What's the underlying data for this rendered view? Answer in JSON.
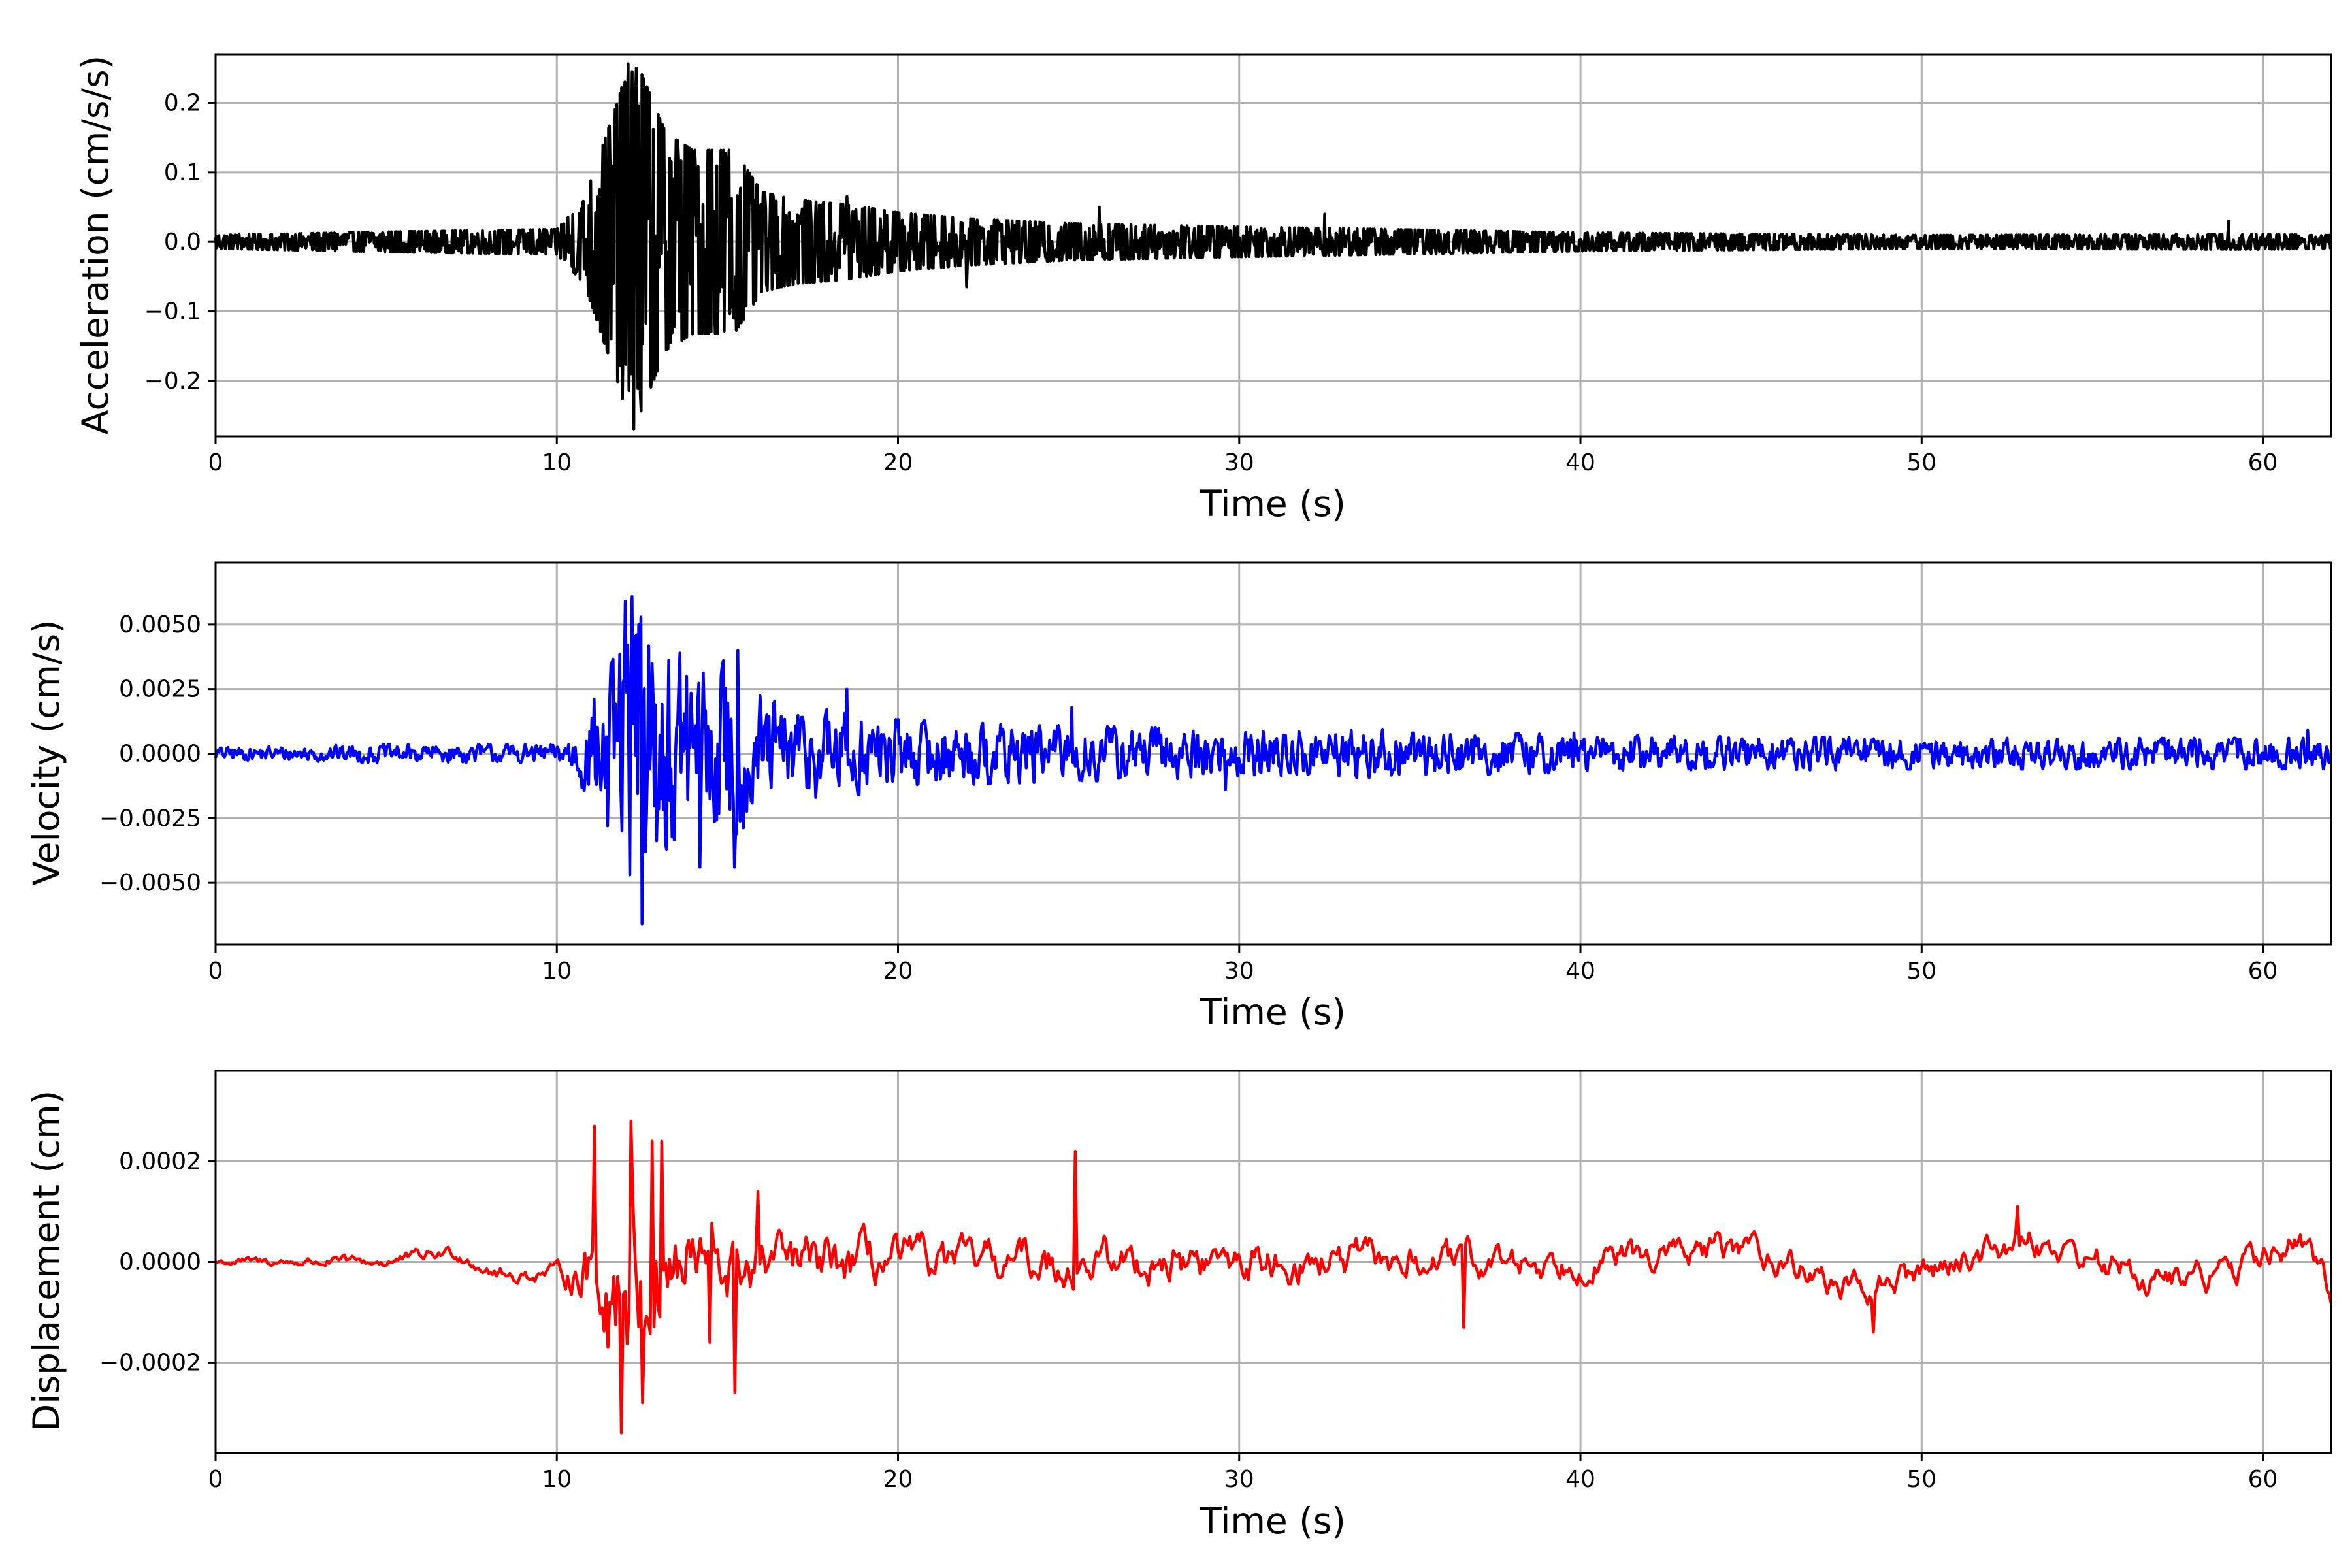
{
  "chart_data": [
    {
      "type": "line",
      "xlabel": "Time (s)",
      "ylabel": "Acceleration (cm/s/s)",
      "xlim": [
        0,
        62
      ],
      "ylim": [
        -0.28,
        0.27
      ],
      "xticks": [
        0,
        10,
        20,
        30,
        40,
        50,
        60
      ],
      "xtick_labels": [
        "0",
        "10",
        "20",
        "30",
        "40",
        "50",
        "60"
      ],
      "yticks": [
        -0.2,
        -0.1,
        0.0,
        0.1,
        0.2
      ],
      "ytick_labels": [
        "−0.2",
        "−0.1",
        "0.0",
        "0.1",
        "0.2"
      ],
      "grid": true,
      "color": "#000000",
      "series": [
        {
          "envelope": {
            "t": [
              0,
              5,
              10,
              10.8,
              11.3,
              11.8,
              12.2,
              12.6,
              13.2,
              14,
              15.2,
              16,
              17,
              18.5,
              20,
              22,
              25,
              30,
              33,
              40,
              50,
              60,
              62
            ],
            "amp": [
              0.008,
              0.012,
              0.015,
              0.05,
              0.11,
              0.17,
              0.23,
              0.19,
              0.13,
              0.11,
              0.11,
              0.06,
              0.05,
              0.045,
              0.035,
              0.028,
              0.022,
              0.018,
              0.016,
              0.011,
              0.008,
              0.009,
              0.008
            ]
          },
          "peaks": [
            [
              11.2,
              0.065
            ],
            [
              11.6,
              -0.14
            ],
            [
              12.0,
              0.23
            ],
            [
              12.15,
              -0.19
            ],
            [
              12.2,
              0.245
            ],
            [
              12.45,
              -0.22
            ],
            [
              12.6,
              0.22
            ],
            [
              12.8,
              -0.16
            ],
            [
              13.3,
              0.12
            ],
            [
              13.6,
              -0.1
            ],
            [
              14.0,
              0.13
            ],
            [
              14.3,
              -0.11
            ],
            [
              15.0,
              0.12
            ],
            [
              15.2,
              -0.11
            ],
            [
              17.3,
              0.06
            ],
            [
              18.5,
              0.065
            ],
            [
              22.0,
              -0.065
            ],
            [
              25.9,
              0.05
            ],
            [
              32.5,
              0.04
            ],
            [
              59.0,
              0.03
            ]
          ]
        }
      ]
    },
    {
      "type": "line",
      "xlabel": "Time (s)",
      "ylabel": "Velocity (cm/s)",
      "xlim": [
        0,
        62
      ],
      "ylim": [
        -0.0074,
        0.0074
      ],
      "xticks": [
        0,
        10,
        20,
        30,
        40,
        50,
        60
      ],
      "xtick_labels": [
        "0",
        "10",
        "20",
        "30",
        "40",
        "50",
        "60"
      ],
      "yticks": [
        -0.005,
        -0.0025,
        0.0,
        0.0025,
        0.005
      ],
      "ytick_labels": [
        "−0.0050",
        "−0.0025",
        "0.0000",
        "0.0025",
        "0.0050"
      ],
      "grid": true,
      "color": "#0000ff",
      "series": [
        {
          "envelope": {
            "t": [
              0,
              5,
              10,
              10.8,
              11.3,
              11.8,
              12.2,
              12.6,
              13.2,
              14,
              15.2,
              16,
              17,
              18.5,
              20,
              22,
              25,
              30,
              33,
              40,
              50,
              60,
              62
            ],
            "amp": [
              0.0002,
              0.0003,
              0.0003,
              0.0012,
              0.002,
              0.0035,
              0.0055,
              0.005,
              0.0035,
              0.003,
              0.003,
              0.0018,
              0.0015,
              0.0014,
              0.0011,
              0.001,
              0.0009,
              0.0008,
              0.0008,
              0.0006,
              0.0005,
              0.0005,
              0.0005
            ]
          },
          "peaks": [
            [
              11.1,
              0.0021
            ],
            [
              11.5,
              -0.0028
            ],
            [
              12.0,
              0.0059
            ],
            [
              12.15,
              -0.0047
            ],
            [
              12.4,
              0.005
            ],
            [
              12.5,
              -0.0066
            ],
            [
              12.8,
              0.0035
            ],
            [
              13.2,
              -0.0037
            ],
            [
              13.8,
              0.003
            ],
            [
              14.2,
              -0.0044
            ],
            [
              15.3,
              0.004
            ],
            [
              15.2,
              -0.0044
            ],
            [
              18.5,
              0.0025
            ],
            [
              25.1,
              0.0018
            ],
            [
              29.6,
              -0.0014
            ],
            [
              39.8,
              0.0008
            ],
            [
              61.3,
              0.0009
            ]
          ]
        }
      ]
    },
    {
      "type": "line",
      "xlabel": "Time (s)",
      "ylabel": "Displacement (cm)",
      "xlim": [
        0,
        62
      ],
      "ylim": [
        -0.00038,
        0.00038
      ],
      "xticks": [
        0,
        10,
        20,
        30,
        40,
        50,
        60
      ],
      "xtick_labels": [
        "0",
        "10",
        "20",
        "30",
        "40",
        "50",
        "60"
      ],
      "yticks": [
        -0.0002,
        0.0,
        0.0002
      ],
      "ytick_labels": [
        "−0.0002",
        "0.0000",
        "0.0002"
      ],
      "grid": true,
      "color": "#ff0000",
      "series": [
        {
          "envelope": {
            "t": [
              0,
              5,
              8,
              10,
              10.8,
              11.3,
              11.8,
              12.2,
              12.6,
              13.2,
              14,
              15.2,
              16,
              17,
              18.5,
              20,
              22,
              25,
              30,
              33,
              40,
              50,
              60,
              62
            ],
            "amp": [
              1e-05,
              1.5e-05,
              2e-05,
              2e-05,
              8e-05,
              0.00014,
              0.00022,
              0.00024,
              0.00022,
              0.00016,
              0.00012,
              0.0001,
              8e-05,
              7e-05,
              7e-05,
              6e-05,
              5e-05,
              6e-05,
              5e-05,
              5e-05,
              4e-05,
              4e-05,
              4e-05,
              4e-05
            ]
          },
          "drift": {
            "t": [
              0,
              5,
              7,
              8.5,
              10,
              20,
              30,
              40,
              45,
              48,
              50,
              53,
              57,
              59,
              61,
              62
            ],
            "v": [
              0.0,
              0.0,
              2e-05,
              -3e-05,
              -2e-05,
              0.0,
              0.0,
              0.0,
              3e-05,
              -6e-05,
              -2e-05,
              5e-05,
              -4e-05,
              -2e-05,
              4e-05,
              -5e-05
            ]
          },
          "peaks": [
            [
              11.1,
              0.00027
            ],
            [
              11.5,
              -0.00017
            ],
            [
              11.9,
              -0.00034
            ],
            [
              12.2,
              0.00028
            ],
            [
              12.5,
              -0.00028
            ],
            [
              12.8,
              0.00024
            ],
            [
              13.1,
              0.00024
            ],
            [
              14.5,
              -0.00016
            ],
            [
              15.2,
              -0.00026
            ],
            [
              15.9,
              0.00014
            ],
            [
              25.2,
              0.00022
            ],
            [
              36.6,
              -0.00013
            ],
            [
              48.6,
              -0.00014
            ],
            [
              52.8,
              0.00011
            ]
          ]
        }
      ]
    }
  ]
}
